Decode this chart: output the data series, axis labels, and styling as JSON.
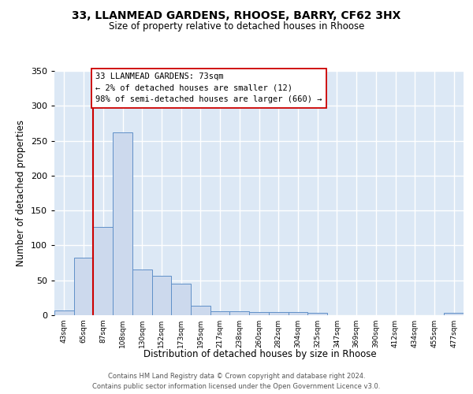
{
  "title1": "33, LLANMEAD GARDENS, RHOOSE, BARRY, CF62 3HX",
  "title2": "Size of property relative to detached houses in Rhoose",
  "xlabel": "Distribution of detached houses by size in Rhoose",
  "ylabel": "Number of detached properties",
  "bin_labels": [
    "43sqm",
    "65sqm",
    "87sqm",
    "108sqm",
    "130sqm",
    "152sqm",
    "173sqm",
    "195sqm",
    "217sqm",
    "238sqm",
    "260sqm",
    "282sqm",
    "304sqm",
    "325sqm",
    "347sqm",
    "369sqm",
    "390sqm",
    "412sqm",
    "434sqm",
    "455sqm",
    "477sqm"
  ],
  "bar_values": [
    7,
    82,
    127,
    262,
    65,
    57,
    45,
    14,
    6,
    6,
    4,
    4,
    4,
    3,
    0,
    0,
    0,
    0,
    0,
    0,
    3
  ],
  "bar_color": "#ccd9ed",
  "bar_edge_color": "#6090c8",
  "vline_color": "#cc0000",
  "annotation_text": "33 LLANMEAD GARDENS: 73sqm\n← 2% of detached houses are smaller (12)\n98% of semi-detached houses are larger (660) →",
  "box_facecolor": "#ffffff",
  "box_edgecolor": "#cc0000",
  "ylim": [
    0,
    350
  ],
  "yticks": [
    0,
    50,
    100,
    150,
    200,
    250,
    300,
    350
  ],
  "plot_bgcolor": "#dce8f5",
  "grid_color": "#ffffff",
  "footer_text": "Contains HM Land Registry data © Crown copyright and database right 2024.\nContains public sector information licensed under the Open Government Licence v3.0."
}
